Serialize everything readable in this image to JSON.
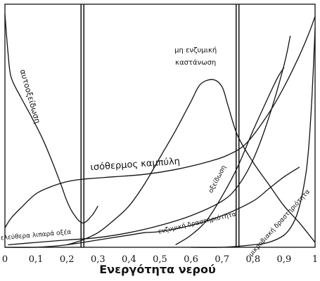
{
  "chart_data": {
    "type": "line",
    "title": "",
    "xlabel": "Ενεργότητα νερού",
    "ylabel": "",
    "xlim": [
      0,
      1
    ],
    "ylim": [
      0,
      100
    ],
    "grid": false,
    "xticks": [
      "0",
      "0,1",
      "0,2",
      "0,3",
      "0,4",
      "0,5",
      "0,6",
      "0,7",
      "0,8",
      "0,9",
      "1"
    ],
    "reference_lines_x": [
      0.25,
      0.75
    ],
    "series": [
      {
        "name": "αυτοοξείδωση",
        "x": [
          0.0,
          0.01,
          0.02,
          0.05,
          0.08,
          0.12,
          0.15,
          0.18,
          0.2,
          0.22,
          0.25,
          0.28,
          0.3
        ],
        "y": [
          96,
          80,
          70,
          62,
          55,
          45,
          36,
          26,
          19,
          14,
          10,
          13,
          17
        ]
      },
      {
        "name": "ισόθερμος καμπύλη",
        "x": [
          0.0,
          0.02,
          0.05,
          0.1,
          0.15,
          0.2,
          0.25,
          0.35,
          0.45,
          0.55,
          0.65,
          0.72,
          0.78,
          0.85,
          0.9,
          0.95,
          0.98,
          1.0
        ],
        "y": [
          8,
          12,
          16,
          22,
          25,
          27,
          28,
          29,
          30,
          32,
          35,
          38,
          43,
          55,
          66,
          79,
          88,
          95
        ]
      },
      {
        "name": "μη ενζυμική καστάνωση",
        "x": [
          0.2,
          0.25,
          0.3,
          0.35,
          0.4,
          0.45,
          0.5,
          0.55,
          0.6,
          0.63,
          0.67,
          0.7,
          0.72,
          0.75,
          0.8,
          0.85,
          0.9,
          0.95,
          1.0
        ],
        "y": [
          1,
          3,
          6,
          11,
          17,
          26,
          37,
          48,
          60,
          67,
          69,
          66,
          58,
          46,
          35,
          26,
          17,
          10,
          2
        ]
      },
      {
        "name": "ελεύθερα λιπαρά οξέα",
        "x": [
          0.01,
          0.1,
          0.2,
          0.3,
          0.4,
          0.5,
          0.6,
          0.7,
          0.75,
          0.8,
          0.85,
          0.9,
          0.92
        ],
        "y": [
          1,
          2,
          3,
          4,
          6,
          9,
          13,
          19,
          25,
          36,
          53,
          75,
          87
        ]
      },
      {
        "name": "οξείδωση",
        "x": [
          0.55,
          0.6,
          0.65,
          0.7,
          0.75,
          0.8,
          0.85,
          0.88,
          0.9
        ],
        "y": [
          1,
          5,
          11,
          21,
          33,
          48,
          62,
          70,
          74
        ]
      },
      {
        "name": "ενζυμική δραστηριότητα",
        "x": [
          0.0,
          0.1,
          0.2,
          0.3,
          0.4,
          0.45,
          0.5,
          0.6,
          0.7,
          0.8,
          0.85,
          0.9,
          0.95
        ],
        "y": [
          0,
          0,
          1,
          3,
          5,
          6,
          6.5,
          9,
          13,
          19,
          24,
          29,
          33
        ]
      },
      {
        "name": "μικροβιακή δραστηριότητα",
        "x": [
          0.6,
          0.7,
          0.8,
          0.85,
          0.9,
          0.93,
          0.95,
          0.97,
          0.98,
          0.99,
          1.0
        ],
        "y": [
          0,
          0,
          1,
          2,
          5,
          10,
          17,
          30,
          42,
          62,
          90
        ]
      }
    ],
    "labels": [
      {
        "text": "αυτοοξείδωση",
        "x": 0.08,
        "y": 62,
        "angle": 74,
        "size": 11
      },
      {
        "text": "ισόθερμος καμπύλη",
        "x": 0.42,
        "y": 34,
        "angle": -4,
        "size": 13
      },
      {
        "text": "μη ενζυμική",
        "x": 0.615,
        "y": 81,
        "angle": 0,
        "size": 10
      },
      {
        "text": "καστάνωση",
        "x": 0.615,
        "y": 76,
        "angle": 0,
        "size": 10
      },
      {
        "text": "ελεύθερα λιπαρά οξέα",
        "x": 0.1,
        "y": 5,
        "angle": -5,
        "size": 9
      },
      {
        "text": "οξείδωση",
        "x": 0.685,
        "y": 28,
        "angle": -62,
        "size": 9
      },
      {
        "text": "ενζυμική δραστηριότητα",
        "x": 0.62,
        "y": 10,
        "angle": -13,
        "size": 9
      },
      {
        "text": "μικροβιακή δραστηριότητα",
        "x": 0.885,
        "y": 10,
        "angle": -48,
        "size": 9
      }
    ]
  }
}
